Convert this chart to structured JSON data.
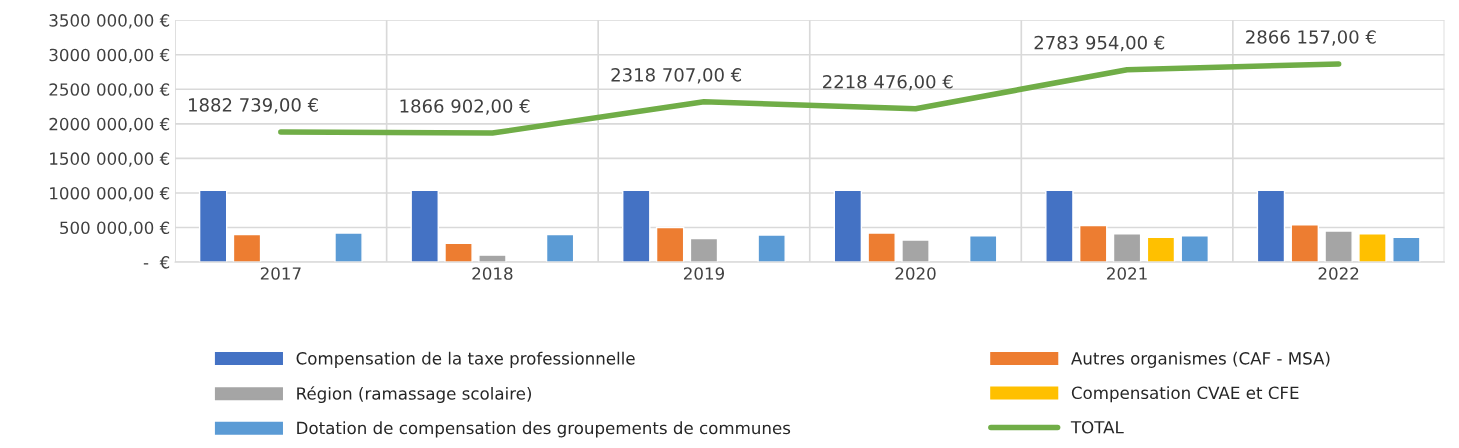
{
  "chart_data": {
    "type": "bar",
    "categories": [
      "2017",
      "2018",
      "2019",
      "2020",
      "2021",
      "2022"
    ],
    "series": [
      {
        "name": "Compensation de la taxe professionnelle",
        "color": "#4472c4",
        "values": [
          1040000,
          1040000,
          1040000,
          1040000,
          1040000,
          1040000
        ]
      },
      {
        "name": "Autres organismes (CAF - MSA)",
        "color": "#ed7d31",
        "values": [
          400000,
          270000,
          500000,
          420000,
          530000,
          540000
        ]
      },
      {
        "name": "Région (ramassage scolaire)",
        "color": "#a5a5a5",
        "values": [
          null,
          100000,
          340000,
          320000,
          410000,
          450000
        ]
      },
      {
        "name": "Compensation CVAE et CFE",
        "color": "#ffc000",
        "values": [
          null,
          null,
          null,
          null,
          360000,
          410000
        ]
      },
      {
        "name": "Dotation de compensation des groupements de communes",
        "color": "#5b9bd5",
        "values": [
          420000,
          400000,
          390000,
          380000,
          380000,
          360000
        ]
      },
      {
        "name": "TOTAL",
        "type": "line",
        "color": "#70ad47",
        "values": [
          1882739,
          1866902,
          2318707,
          2218476,
          2783954,
          2866157
        ],
        "value_labels": [
          "1882 739,00 €",
          "1866 902,00 €",
          "2318 707,00 €",
          "2218 476,00 €",
          "2783 954,00 €",
          "2866 157,00 €"
        ]
      }
    ],
    "ylim": [
      0,
      3500000
    ],
    "yticks": [
      {
        "value": 0,
        "label": "-  €"
      },
      {
        "value": 500000,
        "label": "500 000,00 €"
      },
      {
        "value": 1000000,
        "label": "1000 000,00 €"
      },
      {
        "value": 1500000,
        "label": "1500 000,00 €"
      },
      {
        "value": 2000000,
        "label": "2000 000,00 €"
      },
      {
        "value": 2500000,
        "label": "2500 000,00 €"
      },
      {
        "value": 3000000,
        "label": "3000 000,00 €"
      },
      {
        "value": 3500000,
        "label": "3500 000,00 €"
      }
    ],
    "grid": true,
    "legend": "bottom",
    "marker": "none",
    "line_style": "solid"
  }
}
